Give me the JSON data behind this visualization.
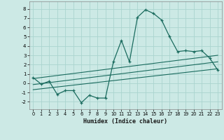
{
  "xlabel": "Humidex (Indice chaleur)",
  "ylabel": "",
  "bg_color": "#cce9e5",
  "grid_color": "#aad4cf",
  "line_color": "#1a6b5e",
  "xlim": [
    -0.5,
    23.5
  ],
  "ylim": [
    -2.8,
    8.8
  ],
  "xticks": [
    0,
    1,
    2,
    3,
    4,
    5,
    6,
    7,
    8,
    9,
    10,
    11,
    12,
    13,
    14,
    15,
    16,
    17,
    18,
    19,
    20,
    21,
    22,
    23
  ],
  "yticks": [
    -2,
    -1,
    0,
    1,
    2,
    3,
    4,
    5,
    6,
    7,
    8
  ],
  "main_series_x": [
    0,
    1,
    2,
    3,
    4,
    5,
    6,
    7,
    8,
    9,
    10,
    11,
    12,
    13,
    14,
    15,
    16,
    17,
    18,
    19,
    20,
    21,
    22,
    23
  ],
  "main_series_y": [
    0.6,
    -0.1,
    0.2,
    -1.2,
    -0.8,
    -0.8,
    -2.1,
    -1.3,
    -1.6,
    -1.6,
    2.3,
    4.6,
    2.3,
    7.1,
    7.9,
    7.5,
    6.8,
    5.0,
    3.4,
    3.5,
    3.4,
    3.5,
    2.7,
    1.4
  ],
  "line1_x": [
    0,
    23
  ],
  "line1_y": [
    -0.15,
    2.3
  ],
  "line2_x": [
    0,
    23
  ],
  "line2_y": [
    0.5,
    3.0
  ],
  "line3_x": [
    0,
    23
  ],
  "line3_y": [
    -0.7,
    1.55
  ]
}
